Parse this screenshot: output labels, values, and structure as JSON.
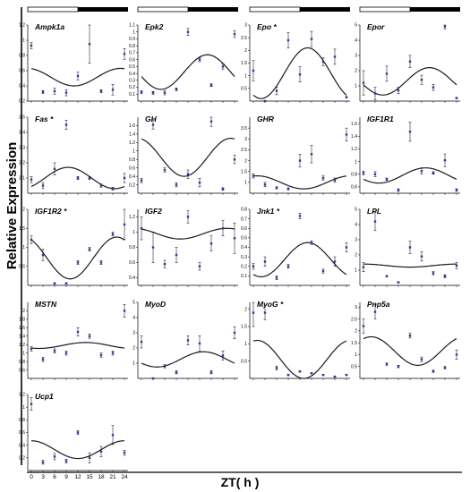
{
  "figure": {
    "ylabel": "Relative Expression",
    "xlabel": "ZT( h )",
    "x_ticks": [
      "0",
      "3",
      "6",
      "9",
      "12",
      "15",
      "18",
      "21",
      "24"
    ]
  },
  "chart_data": [
    {
      "type": "scatter",
      "title": "Ampk1a",
      "star": false,
      "ylim": [
        0.2,
        1.2
      ],
      "yticks": [
        0.2,
        0.4,
        0.6,
        0.8,
        1.0,
        1.2
      ],
      "x": [
        0,
        3,
        6,
        9,
        12,
        15,
        18,
        21,
        24
      ],
      "values": [
        0.93,
        0.32,
        0.33,
        0.31,
        0.53,
        0.95,
        0.33,
        0.35,
        0.82
      ],
      "errors": [
        0.04,
        0.02,
        0.04,
        0.04,
        0.05,
        0.25,
        0.02,
        0.07,
        0.07
      ],
      "fit": {
        "mesor": 0.515,
        "amp": 0.115,
        "peak": 23
      }
    },
    {
      "type": "scatter",
      "title": "Epk2",
      "star": false,
      "ylim": [
        0,
        1.1
      ],
      "yticks": [
        0.1,
        0.2,
        0.3,
        0.4,
        0.5,
        0.6,
        0.7,
        0.8,
        0.9,
        1.0,
        1.1
      ],
      "x": [
        0,
        3,
        6,
        9,
        12,
        15,
        18,
        21,
        24
      ],
      "values": [
        0.13,
        0.12,
        0.12,
        0.17,
        1.0,
        0.6,
        0.23,
        0.5,
        0.97
      ],
      "errors": [
        0.02,
        0.02,
        0.03,
        0.02,
        0.05,
        0.03,
        0.02,
        0.04,
        0.05
      ],
      "fit": {
        "mesor": 0.42,
        "amp": 0.25,
        "peak": 17
      }
    },
    {
      "type": "scatter",
      "title": "Epo",
      "star": true,
      "ylim": [
        0,
        3
      ],
      "yticks": [
        0.5,
        1,
        1.5,
        2,
        2.5,
        3
      ],
      "x": [
        0,
        3,
        6,
        9,
        12,
        15,
        18,
        21,
        24
      ],
      "values": [
        1.2,
        0.0,
        0.4,
        2.4,
        1.05,
        2.45,
        1.55,
        1.75,
        0.15
      ],
      "errors": [
        0.4,
        0.02,
        0.15,
        0.3,
        0.3,
        0.3,
        0.15,
        0.3,
        0.03
      ],
      "fit": {
        "mesor": 1.1,
        "amp": 1.0,
        "peak": 14
      }
    },
    {
      "type": "scatter",
      "title": "Epor",
      "star": false,
      "ylim": [
        0,
        5
      ],
      "yticks": [
        1,
        2,
        3,
        4,
        5
      ],
      "x": [
        0,
        3,
        6,
        9,
        12,
        15,
        18,
        21,
        24
      ],
      "values": [
        1.2,
        0.5,
        1.8,
        0.7,
        2.6,
        1.4,
        0.9,
        4.9,
        0.2
      ],
      "errors": [
        0.8,
        0.4,
        0.5,
        0.2,
        0.4,
        0.3,
        0.2,
        0.15,
        0.05
      ],
      "fit": {
        "mesor": 1.3,
        "amp": 0.9,
        "peak": 17
      }
    },
    {
      "type": "scatter",
      "title": "Fas",
      "star": true,
      "ylim": [
        3.0,
        3.5
      ],
      "yticks": [
        3.1,
        3.2,
        3.3,
        3.4,
        3.5
      ],
      "x": [
        0,
        3,
        6,
        9,
        12,
        15,
        18,
        21,
        24
      ],
      "values": [
        3.09,
        3.05,
        3.16,
        3.45,
        3.1,
        3.1,
        3.05,
        3.03,
        3.1
      ],
      "errors": [
        0.02,
        0.02,
        0.04,
        0.03,
        0.01,
        0.01,
        0.01,
        0.01,
        0.03
      ],
      "fit": {
        "mesor": 3.1,
        "amp": 0.07,
        "peak": 9.5
      }
    },
    {
      "type": "scatter",
      "title": "GH",
      "star": false,
      "ylim": [
        0,
        1.8
      ],
      "yticks": [
        0.2,
        0.4,
        0.6,
        0.8,
        1.0,
        1.2,
        1.4,
        1.6
      ],
      "x": [
        0,
        3,
        6,
        9,
        12,
        15,
        18,
        21,
        24
      ],
      "values": [
        0.3,
        1.62,
        0.55,
        0.2,
        0.45,
        0.25,
        1.7,
        0.1,
        0.8
      ],
      "errors": [
        0.05,
        0.1,
        0.05,
        0.05,
        0.1,
        0.1,
        0.12,
        0.03,
        0.1
      ],
      "fit": {
        "mesor": 0.85,
        "amp": 0.45,
        "peak": 23
      }
    },
    {
      "type": "scatter",
      "title": "GHR",
      "star": false,
      "ylim": [
        0.5,
        4
      ],
      "yticks": [
        1,
        1.5,
        2,
        2.5,
        3,
        3.5
      ],
      "x": [
        0,
        3,
        6,
        9,
        12,
        15,
        18,
        21,
        24
      ],
      "values": [
        1.3,
        0.9,
        0.75,
        0.7,
        2.0,
        2.3,
        1.2,
        1.1,
        3.2
      ],
      "errors": [
        0.1,
        0.1,
        0.05,
        0.05,
        0.3,
        0.4,
        0.1,
        0.1,
        0.3
      ],
      "fit": {
        "mesor": 1.0,
        "amp": 0.3,
        "peak": 1
      }
    },
    {
      "type": "scatter",
      "title": "IGF1R1",
      "star": false,
      "ylim": [
        0.5,
        1.7
      ],
      "yticks": [
        0.6,
        0.8,
        1.0,
        1.2,
        1.4,
        1.6
      ],
      "x": [
        0,
        3,
        6,
        9,
        12,
        15,
        18,
        21,
        24
      ],
      "values": [
        0.82,
        0.8,
        0.72,
        0.55,
        1.47,
        0.85,
        0.82,
        1.02,
        0.55
      ],
      "errors": [
        0.03,
        0.04,
        0.02,
        0.02,
        0.15,
        0.05,
        0.02,
        0.1,
        0.02
      ],
      "fit": {
        "mesor": 0.78,
        "amp": 0.12,
        "peak": 16
      }
    },
    {
      "type": "scatter",
      "title": "IGF1R2",
      "star": true,
      "ylim": [
        0,
        2
      ],
      "yticks": [
        0.5,
        1,
        1.5,
        2
      ],
      "x": [
        0,
        3,
        6,
        9,
        12,
        15,
        18,
        21,
        24
      ],
      "values": [
        1.2,
        0.8,
        0.05,
        0.05,
        0.6,
        0.95,
        0.6,
        1.35,
        1.6
      ],
      "errors": [
        0.1,
        0.15,
        0.02,
        0.02,
        0.05,
        0.05,
        0.05,
        0.05,
        0.4
      ],
      "fit": {
        "mesor": 0.72,
        "amp": 0.55,
        "peak": 22
      }
    },
    {
      "type": "scatter",
      "title": "IGF2",
      "star": false,
      "ylim": [
        0.3,
        1.3
      ],
      "yticks": [
        0.4,
        0.6,
        0.8,
        1.0,
        1.2
      ],
      "x": [
        0,
        3,
        6,
        9,
        12,
        15,
        18,
        21,
        24
      ],
      "values": [
        1.05,
        0.8,
        0.58,
        0.7,
        1.2,
        0.55,
        0.85,
        1.05,
        0.92
      ],
      "errors": [
        0.15,
        0.2,
        0.05,
        0.1,
        0.08,
        0.05,
        0.1,
        0.1,
        0.2
      ],
      "fit": {
        "mesor": 0.98,
        "amp": 0.07,
        "peak": 22
      }
    },
    {
      "type": "scatter",
      "title": "Jnk1",
      "star": true,
      "ylim": [
        0,
        0.8
      ],
      "yticks": [
        0.1,
        0.2,
        0.3,
        0.4,
        0.5,
        0.6,
        0.7,
        0.8
      ],
      "x": [
        0,
        3,
        6,
        9,
        12,
        15,
        18,
        21,
        24
      ],
      "values": [
        0.2,
        0.25,
        0.08,
        0.2,
        0.73,
        0.45,
        0.15,
        0.25,
        0.4
      ],
      "errors": [
        0.03,
        0.05,
        0.02,
        0.02,
        0.03,
        0.02,
        0.02,
        0.05,
        0.05
      ],
      "fit": {
        "mesor": 0.27,
        "amp": 0.18,
        "peak": 14
      }
    },
    {
      "type": "scatter",
      "title": "LPL",
      "star": false,
      "ylim": [
        0,
        5
      ],
      "yticks": [
        1,
        2,
        3,
        4,
        5
      ],
      "x": [
        0,
        3,
        6,
        9,
        12,
        15,
        18,
        21,
        24
      ],
      "values": [
        1.2,
        4.2,
        0.6,
        0.2,
        2.5,
        1.9,
        0.8,
        0.6,
        1.3
      ],
      "errors": [
        0.3,
        0.6,
        0.05,
        0.05,
        0.4,
        0.3,
        0.1,
        0.1,
        0.2
      ],
      "fit": {
        "mesor": 1.3,
        "amp": 0.1,
        "peak": 0
      }
    },
    {
      "type": "scatter",
      "title": "MSTN",
      "star": false,
      "ylim": [
        0.4,
        2.2
      ],
      "yticks": [
        0.6,
        0.8,
        1.0,
        1.2,
        1.4,
        1.6,
        1.8,
        2.0
      ],
      "x": [
        0,
        3,
        6,
        9,
        12,
        15,
        18,
        21,
        24
      ],
      "values": [
        1.1,
        0.85,
        1.05,
        1.0,
        1.5,
        1.4,
        0.95,
        1.0,
        2.0
      ],
      "errors": [
        0.05,
        0.05,
        0.05,
        0.05,
        0.1,
        0.05,
        0.05,
        0.05,
        0.15
      ],
      "fit": {
        "mesor": 1.18,
        "amp": 0.07,
        "peak": 14
      }
    },
    {
      "type": "scatter",
      "title": "MyoD",
      "star": false,
      "ylim": [
        0,
        5
      ],
      "yticks": [
        1,
        2,
        3,
        4,
        5
      ],
      "x": [
        0,
        3,
        6,
        9,
        12,
        15,
        18,
        21,
        24
      ],
      "values": [
        2.4,
        0.0,
        0.8,
        0.4,
        2.5,
        2.3,
        0.4,
        1.5,
        3.0
      ],
      "errors": [
        0.4,
        0.02,
        0.1,
        0.1,
        0.3,
        0.5,
        0.1,
        0.3,
        0.4
      ],
      "fit": {
        "mesor": 1.25,
        "amp": 0.5,
        "peak": 16
      }
    },
    {
      "type": "scatter",
      "title": "MyoG",
      "star": true,
      "ylim": [
        0,
        2.2
      ],
      "yticks": [
        0.5,
        1,
        1.5,
        2
      ],
      "x": [
        0,
        3,
        6,
        9,
        12,
        15,
        18,
        21,
        24
      ],
      "values": [
        1.9,
        1.9,
        0.3,
        0.1,
        0.2,
        0.15,
        0.1,
        0.05,
        0.1
      ],
      "errors": [
        0.4,
        0.2,
        0.05,
        0.02,
        0.02,
        0.02,
        0.01,
        0.01,
        0.01
      ],
      "fit": {
        "mesor": 0.55,
        "amp": 0.55,
        "peak": 1
      }
    },
    {
      "type": "scatter",
      "title": "Pnp5a",
      "star": false,
      "ylim": [
        0,
        3.2
      ],
      "yticks": [
        0.5,
        1,
        1.5,
        2,
        2.5,
        3
      ],
      "x": [
        0,
        3,
        6,
        9,
        12,
        15,
        18,
        21,
        24
      ],
      "values": [
        2.2,
        2.8,
        0.6,
        0.5,
        1.8,
        0.8,
        0.3,
        0.45,
        1.0
      ],
      "errors": [
        0.3,
        0.3,
        0.05,
        0.05,
        0.1,
        0.1,
        0.05,
        0.05,
        0.2
      ],
      "fit": {
        "mesor": 1.15,
        "amp": 0.6,
        "peak": 2
      }
    },
    {
      "type": "scatter",
      "title": "Ucp1",
      "star": false,
      "ylim": [
        0,
        1.2
      ],
      "yticks": [
        0.2,
        0.4,
        0.6,
        0.8,
        1.0,
        1.2
      ],
      "x": [
        0,
        3,
        6,
        9,
        12,
        15,
        18,
        21,
        24
      ],
      "values": [
        1.05,
        0.13,
        0.22,
        0.15,
        0.6,
        0.2,
        0.3,
        0.56,
        0.28
      ],
      "errors": [
        0.1,
        0.03,
        0.05,
        0.03,
        0.03,
        0.08,
        0.08,
        0.15,
        0.04
      ],
      "fit": {
        "mesor": 0.33,
        "amp": 0.14,
        "peak": 0
      }
    }
  ]
}
